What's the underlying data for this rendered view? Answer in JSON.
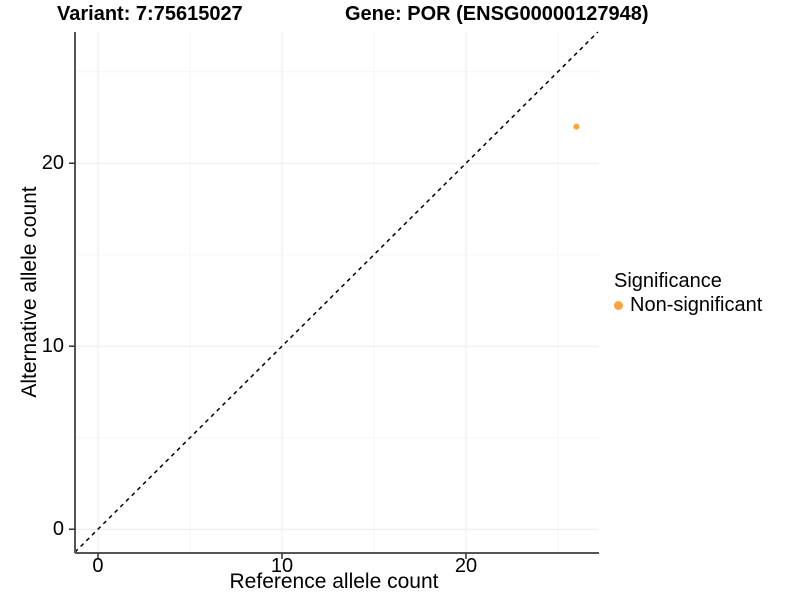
{
  "chart_data": {
    "type": "scatter",
    "titles": {
      "left": "Variant: 7:75615027",
      "right": "Gene: POR (ENSG00000127948)"
    },
    "xlabel": "Reference allele count",
    "ylabel": "Alternative allele count",
    "xlim": [
      -1.25,
      27.23
    ],
    "ylim": [
      -1.3,
      27.17
    ],
    "x_ticks": [
      0,
      10,
      20
    ],
    "y_ticks": [
      0,
      10,
      20
    ],
    "x_minor_ticks": [
      5,
      15,
      25
    ],
    "y_minor_ticks": [
      5,
      15,
      25
    ],
    "grid": true,
    "reference_line": {
      "type": "abline",
      "slope": 1,
      "intercept": 0,
      "style": "dashed"
    },
    "points": [
      {
        "x": 26,
        "y": 22,
        "series": "Non-significant"
      }
    ],
    "legend": {
      "title": "Significance",
      "position": "right",
      "entries": [
        {
          "label": "Non-significant",
          "color": "#FBA43C"
        }
      ]
    },
    "colors": {
      "point": "#FBA43C",
      "grid_major": "#EBEBEB",
      "grid_minor": "#F5F5F5",
      "axis_line": "#555555",
      "tick_mark": "#333333",
      "reference_line": "#000000",
      "text": "#000000"
    }
  }
}
